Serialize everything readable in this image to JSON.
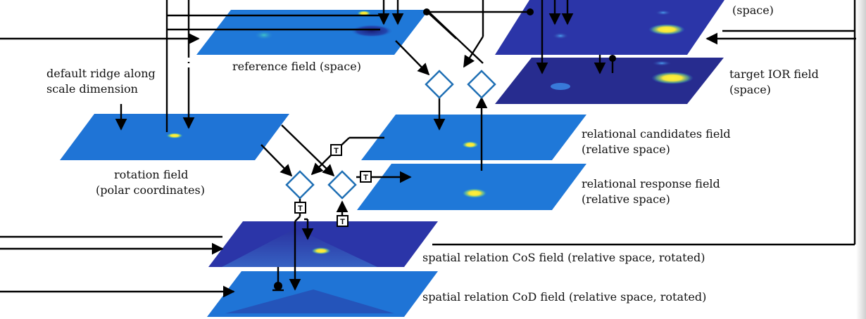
{
  "labels": {
    "target_top": "(space)",
    "reference_field": "reference field (space)",
    "default_ridge_1": "default ridge along",
    "default_ridge_2": "scale dimension",
    "target_ior_1": "target IOR field",
    "target_ior_2": "(space)",
    "rotation_1": "rotation field",
    "rotation_2": "(polar coordinates)",
    "rel_candidates_1": "relational candidates field",
    "rel_candidates_2": "(relative space)",
    "rel_response_1": "relational response field",
    "rel_response_2": "(relative space)",
    "cos_field": "spatial relation CoS field (relative space, rotated)",
    "cod_field": "spatial relation CoD field (relative space, rotated)"
  },
  "transfer_glyph": "T",
  "colors": {
    "field_blue": "#1f74d6",
    "field_dark": "#2a2f9a",
    "node_stroke": "#1f6fb4",
    "line": "#000000"
  }
}
